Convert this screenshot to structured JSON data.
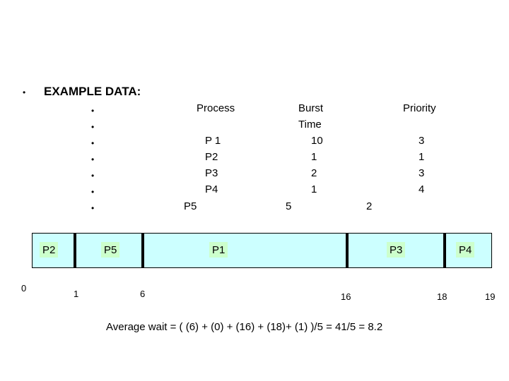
{
  "bullet": "•",
  "heading": "EXAMPLE DATA:",
  "table": {
    "headers": {
      "process": "Process",
      "burst_line1": "Burst",
      "burst_line2": "Time",
      "priority": "Priority"
    },
    "rows": [
      {
        "process": "P 1",
        "burst": "10",
        "priority": "3"
      },
      {
        "process": "P2",
        "burst": "1",
        "priority": "1"
      },
      {
        "process": "P3",
        "burst": "2",
        "priority": "3"
      },
      {
        "process": "P4",
        "burst": "1",
        "priority": "4"
      },
      {
        "process": "P5",
        "burst": "5",
        "priority": "2"
      }
    ]
  },
  "gantt": {
    "segments": [
      "P2",
      "P5",
      "P1",
      "P3",
      "P4"
    ],
    "ticks": [
      "0",
      "1",
      "6",
      "16",
      "18",
      "19"
    ],
    "bar_color": "#ccffff",
    "label_color": "#ccffcc"
  },
  "formula": "Average wait = ( (6) + (0) + (16) + (18)+ (1) )/5 = 41/5 = 8.2"
}
